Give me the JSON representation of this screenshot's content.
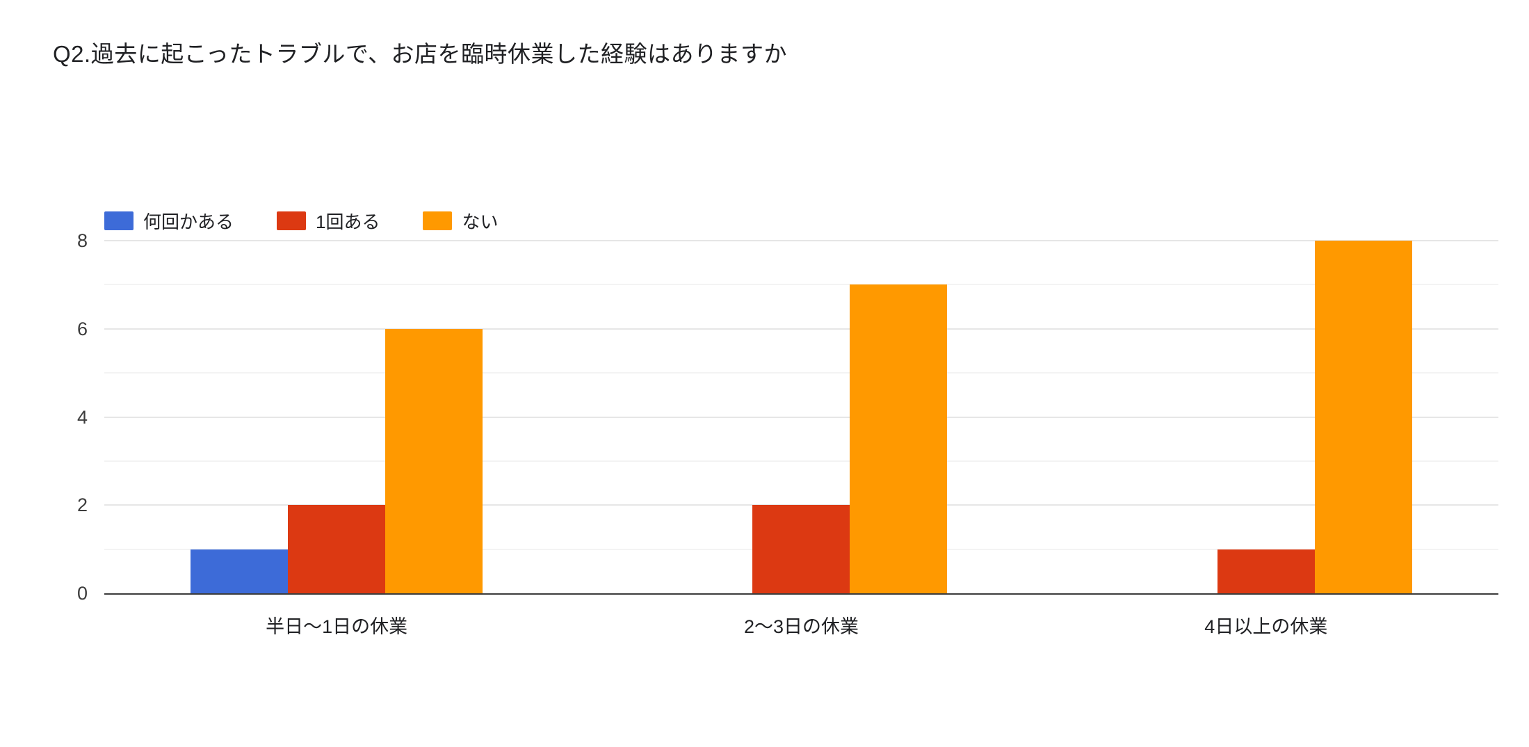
{
  "chart_data": {
    "type": "bar",
    "title": "Q2.過去に起こったトラブルで、お店を臨時休業した経験はありますか",
    "categories": [
      "半日〜1日の休業",
      "2〜3日の休業",
      "4日以上の休業"
    ],
    "series": [
      {
        "name": "何回かある",
        "color": "#3d6bd8",
        "values": [
          1,
          0,
          0
        ]
      },
      {
        "name": "1回ある",
        "color": "#dc3912",
        "values": [
          2,
          2,
          1
        ]
      },
      {
        "name": "ない",
        "color": "#ff9900",
        "values": [
          6,
          7,
          8
        ]
      }
    ],
    "xlabel": "",
    "ylabel": "",
    "ylim": [
      0,
      8
    ],
    "yticks": [
      0,
      2,
      4,
      6,
      8
    ],
    "grid": true,
    "legend_position": "top-left",
    "major_gridline_color": "#e6e6e6",
    "minor_gridline_color": "#f3f3f3",
    "axis_line_color": "#3c3c3c",
    "title_color": "#202124",
    "tick_label_color": "#3c3c3c"
  }
}
